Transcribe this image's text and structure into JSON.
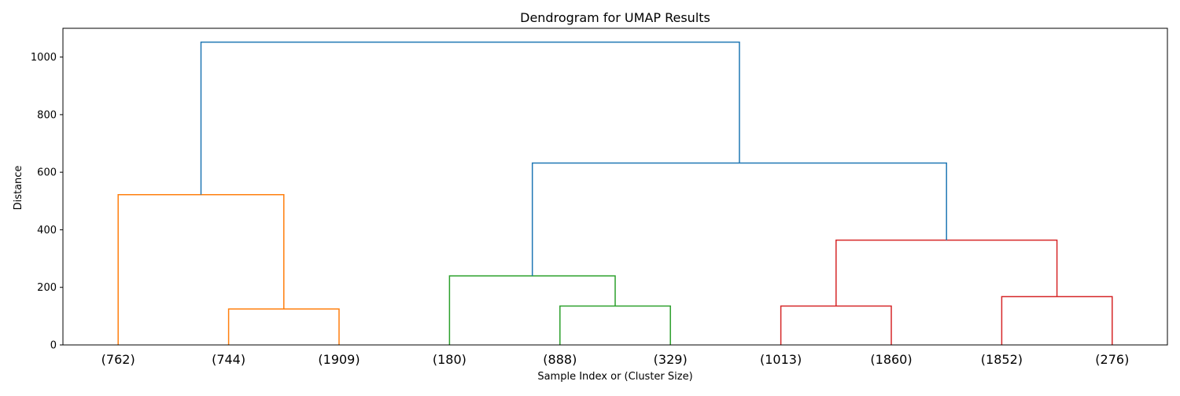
{
  "chart_data": {
    "type": "dendrogram",
    "title": "Dendrogram for UMAP Results",
    "xlabel": "Sample Index or (Cluster Size)",
    "ylabel": "Distance",
    "ylim": [
      0,
      1100
    ],
    "yticks": [
      0,
      200,
      400,
      600,
      800,
      1000
    ],
    "leaves": [
      "(762)",
      "(744)",
      "(1909)",
      "(180)",
      "(888)",
      "(329)",
      "(1013)",
      "(1860)",
      "(1852)",
      "(276)"
    ],
    "links": [
      {
        "left": 1,
        "right": 2,
        "height": 125,
        "color": "#ff7f0e"
      },
      {
        "left": 0,
        "right": "L0",
        "height": 522,
        "color": "#ff7f0e"
      },
      {
        "left": 4,
        "right": 5,
        "height": 135,
        "color": "#2ca02c"
      },
      {
        "left": 3,
        "right": "L2",
        "height": 240,
        "color": "#2ca02c"
      },
      {
        "left": 6,
        "right": 7,
        "height": 135,
        "color": "#d62728"
      },
      {
        "left": 8,
        "right": 9,
        "height": 168,
        "color": "#d62728"
      },
      {
        "left": "L4",
        "right": "L5",
        "height": 364,
        "color": "#d62728"
      },
      {
        "left": "L3",
        "right": "L6",
        "height": 632,
        "color": "#1f77b4"
      },
      {
        "left": "L1",
        "right": "L7",
        "height": 1052,
        "color": "#1f77b4"
      }
    ]
  }
}
